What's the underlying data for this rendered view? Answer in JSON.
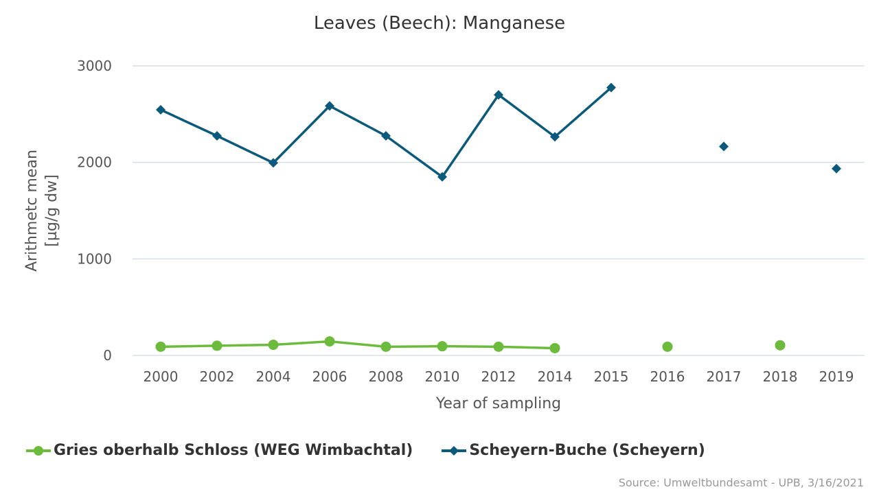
{
  "chart_data": {
    "type": "line",
    "title": "Leaves (Beech): Manganese",
    "xlabel": "Year of sampling",
    "ylabel_lines": [
      "Arithmetc mean",
      "[µg/g dw]"
    ],
    "categories": [
      "2000",
      "2002",
      "2004",
      "2006",
      "2008",
      "2010",
      "2012",
      "2014",
      "2015",
      "2016",
      "2017",
      "2018",
      "2019"
    ],
    "ylim": [
      0,
      3000
    ],
    "yticks": [
      0,
      1000,
      2000,
      3000
    ],
    "grid": true,
    "legend_position": "bottom-left",
    "series": [
      {
        "name": "Gries oberhalb Schloss (WEG Wimbachtal)",
        "marker": "circle",
        "color": "#6cbb3c",
        "values": [
          90,
          100,
          110,
          145,
          90,
          95,
          90,
          75,
          null,
          90,
          null,
          105,
          null
        ]
      },
      {
        "name": "Scheyern-Buche (Scheyern)",
        "marker": "diamond",
        "color": "#0b5a7b",
        "values": [
          2545,
          2275,
          1995,
          2585,
          2275,
          1850,
          2700,
          2265,
          2775,
          null,
          2165,
          null,
          1935
        ]
      }
    ]
  },
  "source": "Source: Umweltbundesamt - UPB, 3/16/2021"
}
